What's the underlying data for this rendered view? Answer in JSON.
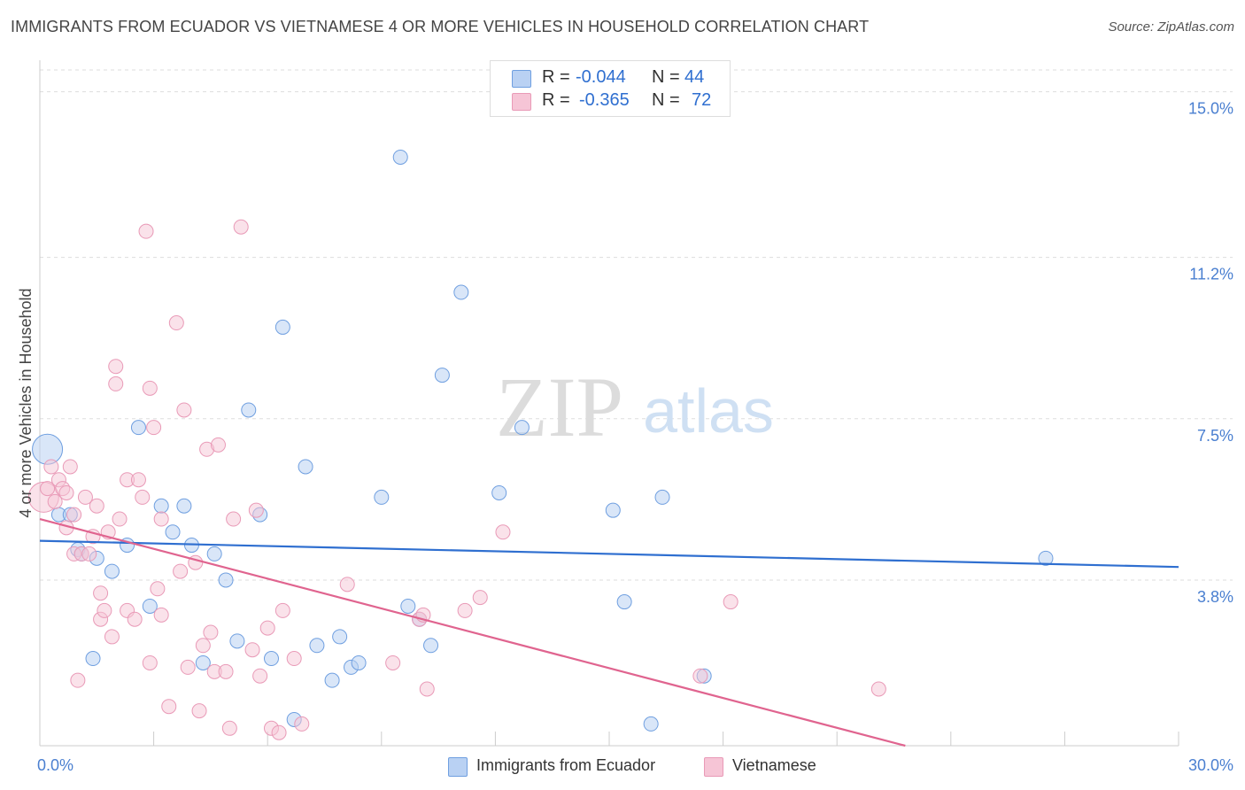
{
  "title": "IMMIGRANTS FROM ECUADOR VS VIETNAMESE 4 OR MORE VEHICLES IN HOUSEHOLD CORRELATION CHART",
  "source": "Source: ZipAtlas.com",
  "watermark": {
    "zip": "ZIP",
    "atlas": "atlas"
  },
  "colors": {
    "blue": "#6f9fe0",
    "blue_fill": "#b9d1f3",
    "blue_line": "#2f6fd0",
    "pink": "#e99ab7",
    "pink_fill": "#f6c5d6",
    "pink_line": "#e0648f",
    "tick_label": "#4a7fd0",
    "grid": "#dddddd"
  },
  "legend": {
    "r_label": "R =",
    "n_label": "N =",
    "rows": [
      {
        "r": "-0.044",
        "n": "44",
        "swatch": "#b9d1f3",
        "border": "#6f9fe0"
      },
      {
        "r": "-0.365",
        "n": "72",
        "swatch": "#f6c5d6",
        "border": "#e99ab7"
      }
    ]
  },
  "bottom_legend": [
    {
      "label": "Immigrants from Ecuador",
      "swatch": "#b9d1f3",
      "border": "#6f9fe0"
    },
    {
      "label": "Vietnamese",
      "swatch": "#f6c5d6",
      "border": "#e99ab7"
    }
  ],
  "chart_data": {
    "type": "scatter",
    "title": "IMMIGRANTS FROM ECUADOR VS VIETNAMESE 4 OR MORE VEHICLES IN HOUSEHOLD CORRELATION CHART",
    "xlabel": "",
    "ylabel": "4 or more Vehicles in Household",
    "xlim": [
      0,
      30
    ],
    "ylim": [
      0,
      15.5
    ],
    "x_tick_labels": [
      {
        "value": 0,
        "label": "0.0%"
      },
      {
        "value": 30,
        "label": "30.0%"
      }
    ],
    "y_tick_labels": [
      {
        "value": 3.8,
        "label": "3.8%"
      },
      {
        "value": 7.5,
        "label": "7.5%"
      },
      {
        "value": 11.2,
        "label": "11.2%"
      },
      {
        "value": 15.0,
        "label": "15.0%"
      }
    ],
    "series": [
      {
        "name": "Immigrants from Ecuador",
        "color": "#6f9fe0",
        "trend": {
          "x": [
            0,
            30
          ],
          "y": [
            4.7,
            4.1
          ]
        },
        "points": [
          {
            "x": 0.2,
            "y": 6.8,
            "big": true
          },
          {
            "x": 0.5,
            "y": 5.3
          },
          {
            "x": 0.8,
            "y": 5.3
          },
          {
            "x": 1.0,
            "y": 4.5
          },
          {
            "x": 1.1,
            "y": 4.4
          },
          {
            "x": 1.5,
            "y": 4.3
          },
          {
            "x": 1.9,
            "y": 4.0
          },
          {
            "x": 1.4,
            "y": 2.0
          },
          {
            "x": 2.3,
            "y": 4.6
          },
          {
            "x": 2.6,
            "y": 7.3
          },
          {
            "x": 2.9,
            "y": 3.2
          },
          {
            "x": 3.2,
            "y": 5.5
          },
          {
            "x": 3.5,
            "y": 4.9
          },
          {
            "x": 3.8,
            "y": 5.5
          },
          {
            "x": 4.0,
            "y": 4.6
          },
          {
            "x": 4.3,
            "y": 1.9
          },
          {
            "x": 4.6,
            "y": 4.4
          },
          {
            "x": 4.9,
            "y": 3.8
          },
          {
            "x": 5.2,
            "y": 2.4
          },
          {
            "x": 5.5,
            "y": 7.7
          },
          {
            "x": 5.8,
            "y": 5.3
          },
          {
            "x": 6.1,
            "y": 2.0
          },
          {
            "x": 6.4,
            "y": 9.6
          },
          {
            "x": 6.7,
            "y": 0.6
          },
          {
            "x": 7.0,
            "y": 6.4
          },
          {
            "x": 7.3,
            "y": 2.3
          },
          {
            "x": 7.7,
            "y": 1.5
          },
          {
            "x": 7.9,
            "y": 2.5
          },
          {
            "x": 8.2,
            "y": 1.8
          },
          {
            "x": 8.4,
            "y": 1.9
          },
          {
            "x": 9.0,
            "y": 5.7
          },
          {
            "x": 9.5,
            "y": 13.5
          },
          {
            "x": 9.7,
            "y": 3.2
          },
          {
            "x": 10.0,
            "y": 2.9
          },
          {
            "x": 10.3,
            "y": 2.3
          },
          {
            "x": 10.6,
            "y": 8.5
          },
          {
            "x": 11.1,
            "y": 10.4
          },
          {
            "x": 12.1,
            "y": 5.8
          },
          {
            "x": 12.7,
            "y": 7.3
          },
          {
            "x": 15.1,
            "y": 5.4
          },
          {
            "x": 15.4,
            "y": 3.3
          },
          {
            "x": 16.1,
            "y": 0.5
          },
          {
            "x": 16.4,
            "y": 5.7
          },
          {
            "x": 17.5,
            "y": 1.6
          },
          {
            "x": 26.5,
            "y": 4.3
          }
        ]
      },
      {
        "name": "Vietnamese",
        "color": "#e99ab7",
        "trend": {
          "x": [
            0,
            22.8
          ],
          "y": [
            5.2,
            0.0
          ]
        },
        "points": [
          {
            "x": 0.1,
            "y": 5.7,
            "big": true
          },
          {
            "x": 0.2,
            "y": 5.9
          },
          {
            "x": 0.3,
            "y": 6.4
          },
          {
            "x": 0.4,
            "y": 5.6
          },
          {
            "x": 0.5,
            "y": 6.1
          },
          {
            "x": 0.6,
            "y": 5.9
          },
          {
            "x": 0.7,
            "y": 5.0
          },
          {
            "x": 0.7,
            "y": 5.8
          },
          {
            "x": 0.8,
            "y": 6.4
          },
          {
            "x": 0.9,
            "y": 5.3
          },
          {
            "x": 0.9,
            "y": 4.4
          },
          {
            "x": 1.0,
            "y": 1.5
          },
          {
            "x": 1.1,
            "y": 4.4
          },
          {
            "x": 1.2,
            "y": 5.7
          },
          {
            "x": 1.3,
            "y": 4.4
          },
          {
            "x": 1.4,
            "y": 4.8
          },
          {
            "x": 1.5,
            "y": 5.5
          },
          {
            "x": 1.6,
            "y": 3.5
          },
          {
            "x": 1.6,
            "y": 2.9
          },
          {
            "x": 1.7,
            "y": 3.1
          },
          {
            "x": 1.8,
            "y": 4.9
          },
          {
            "x": 1.9,
            "y": 2.5
          },
          {
            "x": 2.0,
            "y": 8.3
          },
          {
            "x": 2.0,
            "y": 8.7
          },
          {
            "x": 2.1,
            "y": 5.2
          },
          {
            "x": 2.3,
            "y": 6.1
          },
          {
            "x": 2.3,
            "y": 3.1
          },
          {
            "x": 2.5,
            "y": 2.9
          },
          {
            "x": 2.6,
            "y": 6.1
          },
          {
            "x": 2.7,
            "y": 5.7
          },
          {
            "x": 2.8,
            "y": 11.8
          },
          {
            "x": 2.9,
            "y": 1.9
          },
          {
            "x": 2.9,
            "y": 8.2
          },
          {
            "x": 3.0,
            "y": 7.3
          },
          {
            "x": 3.1,
            "y": 3.6
          },
          {
            "x": 3.2,
            "y": 3.0
          },
          {
            "x": 3.2,
            "y": 5.2
          },
          {
            "x": 3.4,
            "y": 0.9
          },
          {
            "x": 3.6,
            "y": 9.7
          },
          {
            "x": 3.7,
            "y": 4.0
          },
          {
            "x": 3.8,
            "y": 7.7
          },
          {
            "x": 3.9,
            "y": 1.8
          },
          {
            "x": 4.1,
            "y": 4.2
          },
          {
            "x": 4.2,
            "y": 0.8
          },
          {
            "x": 4.3,
            "y": 2.3
          },
          {
            "x": 4.4,
            "y": 6.8
          },
          {
            "x": 4.5,
            "y": 2.6
          },
          {
            "x": 4.6,
            "y": 1.7
          },
          {
            "x": 4.7,
            "y": 6.9
          },
          {
            "x": 4.9,
            "y": 1.7
          },
          {
            "x": 5.0,
            "y": 0.4
          },
          {
            "x": 5.1,
            "y": 5.2
          },
          {
            "x": 5.3,
            "y": 11.9
          },
          {
            "x": 5.6,
            "y": 2.2
          },
          {
            "x": 5.7,
            "y": 5.4
          },
          {
            "x": 5.8,
            "y": 1.6
          },
          {
            "x": 6.0,
            "y": 2.7
          },
          {
            "x": 6.1,
            "y": 0.4
          },
          {
            "x": 6.3,
            "y": 0.3
          },
          {
            "x": 6.4,
            "y": 3.1
          },
          {
            "x": 6.7,
            "y": 2.0
          },
          {
            "x": 6.9,
            "y": 0.5
          },
          {
            "x": 8.1,
            "y": 3.7
          },
          {
            "x": 9.3,
            "y": 1.9
          },
          {
            "x": 10.0,
            "y": 2.9
          },
          {
            "x": 10.1,
            "y": 3.0
          },
          {
            "x": 10.2,
            "y": 1.3
          },
          {
            "x": 11.2,
            "y": 3.1
          },
          {
            "x": 11.6,
            "y": 3.4
          },
          {
            "x": 12.2,
            "y": 4.9
          },
          {
            "x": 17.4,
            "y": 1.6
          },
          {
            "x": 18.2,
            "y": 3.3
          },
          {
            "x": 22.1,
            "y": 1.3
          }
        ]
      }
    ]
  }
}
